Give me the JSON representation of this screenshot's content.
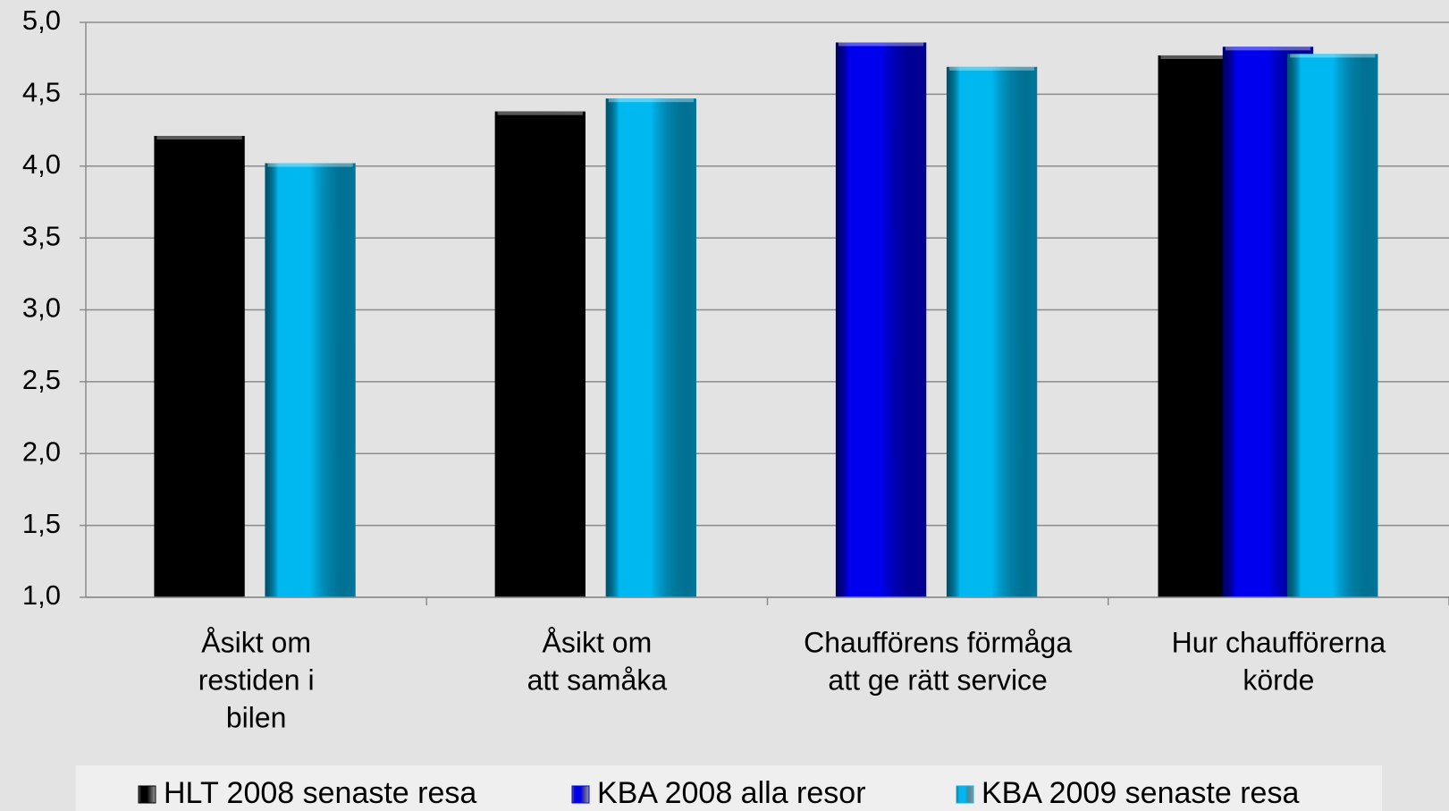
{
  "chart_data": {
    "type": "bar",
    "categories": [
      [
        "Åsikt om",
        "restiden i",
        "bilen"
      ],
      [
        "Åsikt om",
        "att samåka"
      ],
      [
        "Chaufförens förmåga",
        "att ge rätt service"
      ],
      [
        "Hur chaufförerna",
        "körde"
      ]
    ],
    "series": [
      {
        "name": "HLT 2008 senaste resa",
        "color": "#000000",
        "values": [
          4.21,
          4.38,
          null,
          4.77
        ]
      },
      {
        "name": "KBA 2008 alla resor",
        "color": "#0000ee",
        "values": [
          null,
          null,
          4.86,
          4.83
        ]
      },
      {
        "name": "KBA 2009 senaste resa",
        "color": "#00b8f0",
        "values": [
          4.02,
          4.47,
          4.69,
          4.78
        ]
      }
    ],
    "ylim": [
      1,
      5
    ],
    "yticks": [
      {
        "value": 1,
        "label": "1,0"
      },
      {
        "value": 1.5,
        "label": "1,5"
      },
      {
        "value": 2,
        "label": "2,0"
      },
      {
        "value": 2.5,
        "label": "2,5"
      },
      {
        "value": 3,
        "label": "3,0"
      },
      {
        "value": 3.5,
        "label": "3,5"
      },
      {
        "value": 4,
        "label": "4,0"
      },
      {
        "value": 4.5,
        "label": "4,5"
      },
      {
        "value": 5,
        "label": "5,0"
      }
    ],
    "grid": true,
    "legend": "bottom"
  }
}
